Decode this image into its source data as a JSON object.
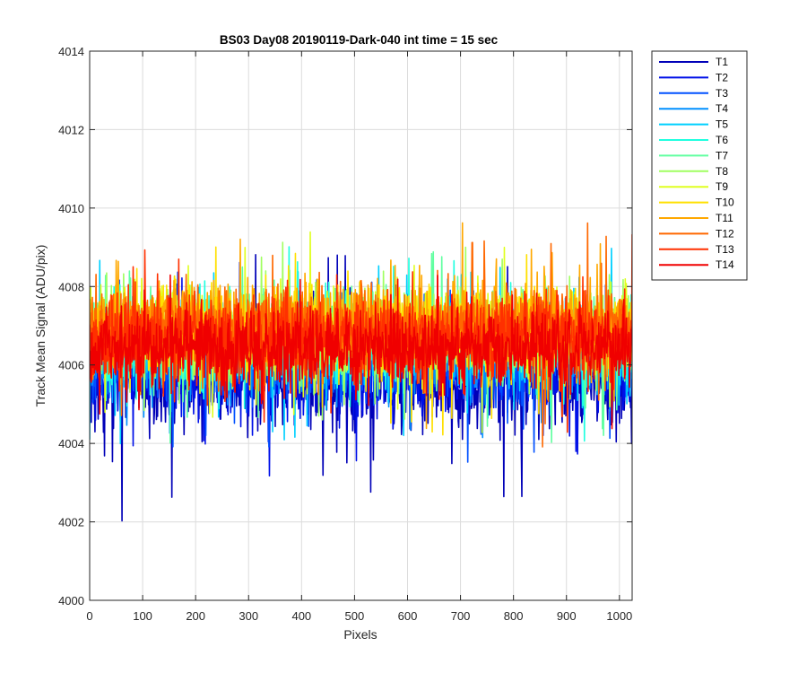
{
  "chart_data": {
    "type": "line",
    "title": "BS03 Day08 20190119-Dark-040 int time = 15 sec",
    "xlabel": "Pixels",
    "ylabel": "Track Mean Signal (ADU/pix)",
    "xlim": [
      0,
      1024
    ],
    "ylim": [
      4000,
      4014
    ],
    "xticks": [
      0,
      100,
      200,
      300,
      400,
      500,
      600,
      700,
      800,
      900,
      1000
    ],
    "yticks": [
      4000,
      4002,
      4004,
      4006,
      4008,
      4010,
      4012,
      4014
    ],
    "grid": true,
    "legend_position": "outside-top-right",
    "n_points": 1024,
    "series": [
      {
        "name": "T1",
        "color": "#0000b8",
        "mean": 4005.6,
        "spread": 0.8,
        "noise_amplitude": 3.6,
        "seed": 11
      },
      {
        "name": "T2",
        "color": "#0010e8",
        "mean": 4005.9,
        "spread": 0.8,
        "noise_amplitude": 3.2,
        "seed": 22
      },
      {
        "name": "T3",
        "color": "#0050ff",
        "mean": 4006.1,
        "spread": 0.7,
        "noise_amplitude": 3.0,
        "seed": 33
      },
      {
        "name": "T4",
        "color": "#0090ff",
        "mean": 4006.3,
        "spread": 0.7,
        "noise_amplitude": 3.0,
        "seed": 44
      },
      {
        "name": "T5",
        "color": "#00d0ff",
        "mean": 4006.5,
        "spread": 0.7,
        "noise_amplitude": 3.1,
        "seed": 55
      },
      {
        "name": "T6",
        "color": "#20ffe0",
        "mean": 4006.6,
        "spread": 0.7,
        "noise_amplitude": 3.0,
        "seed": 66
      },
      {
        "name": "T7",
        "color": "#60ffa0",
        "mean": 4006.7,
        "spread": 0.7,
        "noise_amplitude": 2.9,
        "seed": 77
      },
      {
        "name": "T8",
        "color": "#a0ff60",
        "mean": 4006.8,
        "spread": 0.7,
        "noise_amplitude": 2.9,
        "seed": 88
      },
      {
        "name": "T9",
        "color": "#e0ff20",
        "mean": 4006.8,
        "spread": 0.7,
        "noise_amplitude": 2.9,
        "seed": 99
      },
      {
        "name": "T10",
        "color": "#ffe000",
        "mean": 4006.9,
        "spread": 0.7,
        "noise_amplitude": 2.9,
        "seed": 110
      },
      {
        "name": "T11",
        "color": "#ffa800",
        "mean": 4007.0,
        "spread": 0.7,
        "noise_amplitude": 2.8,
        "seed": 121
      },
      {
        "name": "T12",
        "color": "#ff6800",
        "mean": 4006.9,
        "spread": 0.7,
        "noise_amplitude": 2.8,
        "seed": 132
      },
      {
        "name": "T13",
        "color": "#ff3000",
        "mean": 4006.7,
        "spread": 0.7,
        "noise_amplitude": 2.6,
        "seed": 143
      },
      {
        "name": "T14",
        "color": "#f00000",
        "mean": 4006.4,
        "spread": 0.7,
        "noise_amplitude": 2.4,
        "seed": 154
      }
    ]
  }
}
